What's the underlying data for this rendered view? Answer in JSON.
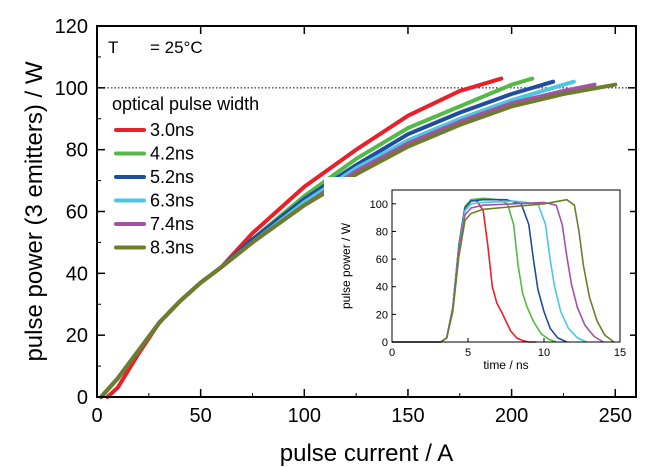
{
  "chart_data": [
    {
      "id": "main",
      "type": "line",
      "xlabel": "pulse current / A",
      "ylabel": "pulse power (3 emitters) / W",
      "xlim": [
        0,
        260
      ],
      "ylim": [
        0,
        120
      ],
      "xticks": [
        0,
        50,
        100,
        150,
        200,
        250
      ],
      "yticks": [
        0,
        20,
        40,
        60,
        80,
        100,
        120
      ],
      "annotation": {
        "label": "T",
        "value": "= 25°C"
      },
      "reference_line": {
        "y": 100,
        "style": "dotted"
      },
      "legend_title": "optical pulse width",
      "legend_position": "left",
      "series": [
        {
          "name": "3.0ns",
          "color": "#e8202a",
          "x": [
            5,
            10,
            20,
            30,
            40,
            50,
            60,
            75,
            100,
            125,
            150,
            175,
            190,
            195
          ],
          "y": [
            0,
            3,
            14,
            24,
            31,
            37,
            42,
            53,
            68,
            80,
            91,
            99,
            102,
            103
          ]
        },
        {
          "name": "4.2ns",
          "color": "#55b947",
          "x": [
            2,
            10,
            20,
            30,
            40,
            50,
            60,
            75,
            100,
            125,
            150,
            175,
            200,
            210
          ],
          "y": [
            0,
            6,
            15,
            24,
            31,
            37,
            42,
            51,
            65,
            77,
            87,
            94,
            101,
            103
          ]
        },
        {
          "name": "5.2ns",
          "color": "#1f4ea1",
          "x": [
            2,
            10,
            20,
            30,
            40,
            50,
            60,
            75,
            100,
            125,
            150,
            175,
            200,
            220
          ],
          "y": [
            0,
            6,
            15,
            24,
            31,
            37,
            42,
            51,
            64,
            75,
            85,
            92,
            98,
            102
          ]
        },
        {
          "name": "6.3ns",
          "color": "#4cc7df",
          "x": [
            2,
            10,
            20,
            30,
            40,
            50,
            60,
            75,
            100,
            125,
            150,
            175,
            200,
            230
          ],
          "y": [
            0,
            6,
            15,
            24,
            31,
            37,
            42,
            50,
            63,
            74,
            83,
            90,
            96,
            102
          ]
        },
        {
          "name": "7.4ns",
          "color": "#a650a8",
          "x": [
            2,
            10,
            20,
            30,
            40,
            50,
            60,
            75,
            100,
            125,
            150,
            175,
            200,
            225,
            240
          ],
          "y": [
            0,
            6,
            15,
            24,
            31,
            37,
            42,
            50,
            62,
            73,
            82,
            89,
            95,
            99,
            101
          ]
        },
        {
          "name": "8.3ns",
          "color": "#6e7d2c",
          "x": [
            2,
            10,
            20,
            30,
            40,
            50,
            60,
            75,
            100,
            125,
            150,
            175,
            200,
            225,
            250
          ],
          "y": [
            0,
            6,
            15,
            24,
            31,
            37,
            42,
            50,
            62,
            72,
            81,
            88,
            94,
            98,
            101
          ]
        }
      ]
    },
    {
      "id": "inset",
      "type": "line",
      "xlabel": "time / ns",
      "ylabel": "pulse power / W",
      "xlim": [
        0,
        15
      ],
      "ylim": [
        0,
        110
      ],
      "xticks": [
        0,
        5,
        10,
        15
      ],
      "yticks": [
        0,
        20,
        40,
        60,
        80,
        100
      ],
      "series": [
        {
          "name": "3.0ns",
          "color": "#e8202a",
          "x": [
            0,
            3.2,
            3.6,
            4.0,
            4.4,
            4.8,
            5.2,
            5.6,
            6.0,
            6.3,
            6.6,
            6.9,
            7.2,
            7.5,
            7.8,
            8.2,
            8.6,
            9.0,
            9.5
          ],
          "y": [
            0,
            0,
            3,
            25,
            70,
            98,
            103,
            102,
            95,
            70,
            40,
            28,
            22,
            15,
            8,
            3,
            1,
            0,
            0
          ]
        },
        {
          "name": "4.2ns",
          "color": "#55b947",
          "x": [
            0,
            3.2,
            3.6,
            4.0,
            4.4,
            4.8,
            5.2,
            6.0,
            7.0,
            7.6,
            8.0,
            8.3,
            8.6,
            8.9,
            9.3,
            9.8,
            10.3,
            10.8
          ],
          "y": [
            0,
            0,
            3,
            25,
            70,
            98,
            103,
            104,
            103,
            100,
            85,
            55,
            35,
            25,
            15,
            6,
            2,
            0
          ]
        },
        {
          "name": "5.2ns",
          "color": "#1f4ea1",
          "x": [
            0,
            3.2,
            3.6,
            4.0,
            4.4,
            4.8,
            5.2,
            6.0,
            7.5,
            8.5,
            9.0,
            9.3,
            9.6,
            10.0,
            10.4,
            10.9,
            11.5
          ],
          "y": [
            0,
            0,
            3,
            25,
            70,
            97,
            102,
            103,
            103,
            100,
            85,
            60,
            38,
            22,
            10,
            3,
            0
          ]
        },
        {
          "name": "6.3ns",
          "color": "#4cc7df",
          "x": [
            0,
            3.2,
            3.6,
            4.0,
            4.4,
            4.8,
            5.2,
            6.0,
            8.0,
            9.6,
            10.1,
            10.4,
            10.7,
            11.1,
            11.6,
            12.2,
            12.8
          ],
          "y": [
            0,
            0,
            3,
            25,
            68,
            95,
            100,
            101,
            102,
            100,
            85,
            60,
            40,
            22,
            10,
            3,
            0
          ]
        },
        {
          "name": "7.4ns",
          "color": "#a650a8",
          "x": [
            0,
            3.2,
            3.6,
            4.0,
            4.4,
            4.8,
            5.2,
            6.0,
            8.0,
            10.0,
            10.8,
            11.2,
            11.5,
            11.8,
            12.2,
            12.7,
            13.3,
            13.9
          ],
          "y": [
            0,
            0,
            3,
            24,
            66,
            92,
            97,
            99,
            100,
            101,
            99,
            85,
            62,
            42,
            25,
            12,
            4,
            0
          ]
        },
        {
          "name": "8.3ns",
          "color": "#6e7d2c",
          "x": [
            0,
            3.2,
            3.6,
            4.0,
            4.4,
            4.8,
            5.2,
            6.0,
            8.0,
            10.0,
            11.5,
            12.0,
            12.3,
            12.6,
            13.0,
            13.5,
            14.0,
            14.6
          ],
          "y": [
            0,
            0,
            3,
            22,
            62,
            88,
            93,
            96,
            98,
            100,
            103,
            99,
            80,
            55,
            32,
            15,
            5,
            0
          ]
        }
      ]
    }
  ]
}
